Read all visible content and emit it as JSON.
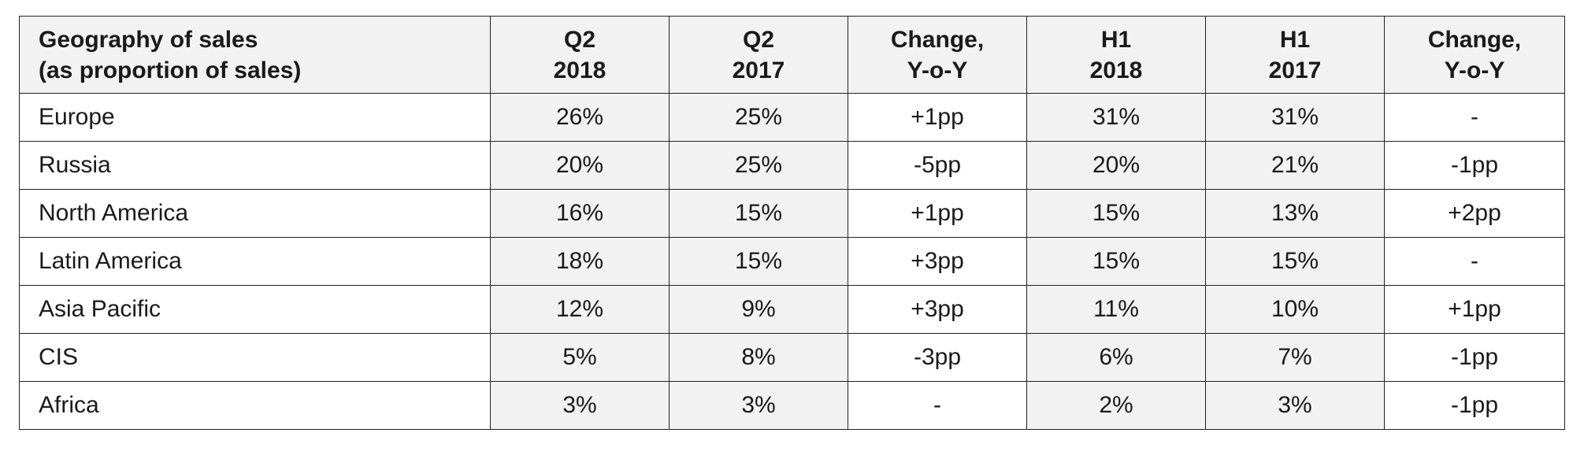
{
  "table": {
    "header": {
      "col0": {
        "line1": "Geography of sales",
        "line2": "(as proportion of sales)"
      },
      "col1": {
        "line1": "Q2",
        "line2": "2018"
      },
      "col2": {
        "line1": "Q2",
        "line2": "2017"
      },
      "col3": {
        "line1": "Change,",
        "line2": "Y-o-Y"
      },
      "col4": {
        "line1": "H1",
        "line2": "2018"
      },
      "col5": {
        "line1": "H1",
        "line2": "2017"
      },
      "col6": {
        "line1": "Change,",
        "line2": "Y-o-Y"
      }
    },
    "rows": [
      [
        "Europe",
        "26%",
        "25%",
        "+1pp",
        "31%",
        "31%",
        "-"
      ],
      [
        "Russia",
        "20%",
        "25%",
        "-5pp",
        "20%",
        "21%",
        "-1pp"
      ],
      [
        "North America",
        "16%",
        "15%",
        "+1pp",
        "15%",
        "13%",
        "+2pp"
      ],
      [
        "Latin America",
        "18%",
        "15%",
        "+3pp",
        "15%",
        "15%",
        "-"
      ],
      [
        "Asia Pacific",
        "12%",
        "9%",
        "+3pp",
        "11%",
        "10%",
        "+1pp"
      ],
      [
        "CIS",
        "5%",
        "8%",
        "-3pp",
        "6%",
        "7%",
        "-1pp"
      ],
      [
        "Africa",
        "3%",
        "3%",
        "-",
        "2%",
        "3%",
        "-1pp"
      ]
    ]
  },
  "colors": {
    "header_bg": "#f2f2f2",
    "shaded_col_bg": "#f2f2f2",
    "border": "#222222"
  }
}
